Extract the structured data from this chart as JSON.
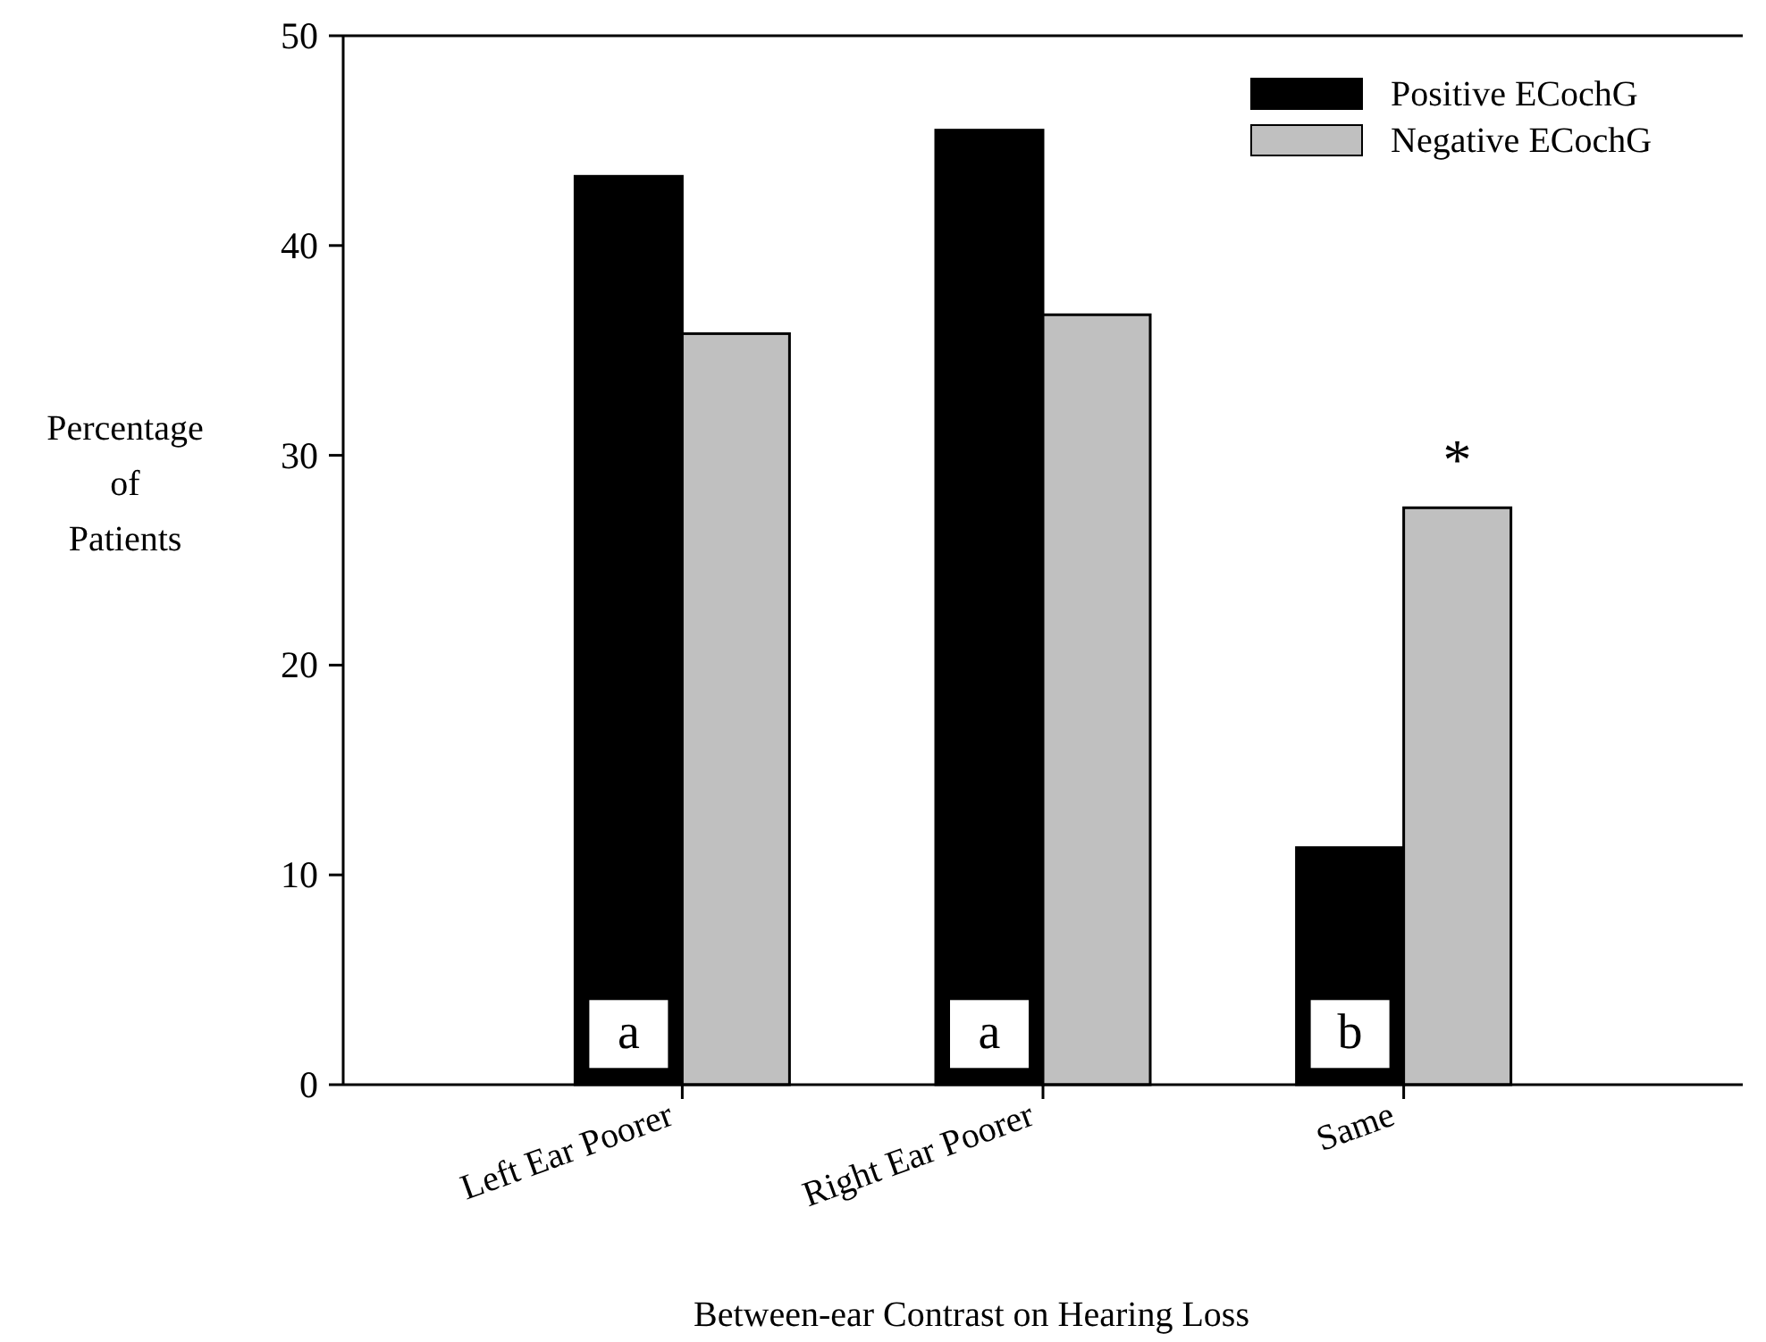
{
  "chart_data": {
    "type": "bar",
    "xlabel": "Between-ear Contrast on Hearing Loss",
    "ylabel": "Percentage\nof\nPatients",
    "categories": [
      "Left Ear Poorer",
      "Right Ear Poorer",
      "Same"
    ],
    "series": [
      {
        "name": "Positive ECochG",
        "color": "#000000",
        "values": [
          43.3,
          45.5,
          11.3
        ]
      },
      {
        "name": "Negative ECochG",
        "color": "#c0c0c0",
        "values": [
          35.8,
          36.7,
          27.5
        ]
      }
    ],
    "ylim": [
      0,
      50
    ],
    "yticks": [
      0,
      10,
      20,
      30,
      40,
      50
    ],
    "legend": "top right",
    "grid": false,
    "annotations": [
      {
        "text": "a",
        "x": "Left Ear Poorer",
        "y": 2.5
      },
      {
        "text": "a",
        "x": "Right Ear Poorer",
        "y": 2.5
      },
      {
        "text": "b",
        "x": "Same",
        "y": 2.5
      },
      {
        "text": "*",
        "x": "Same",
        "y": 27.5
      }
    ]
  }
}
